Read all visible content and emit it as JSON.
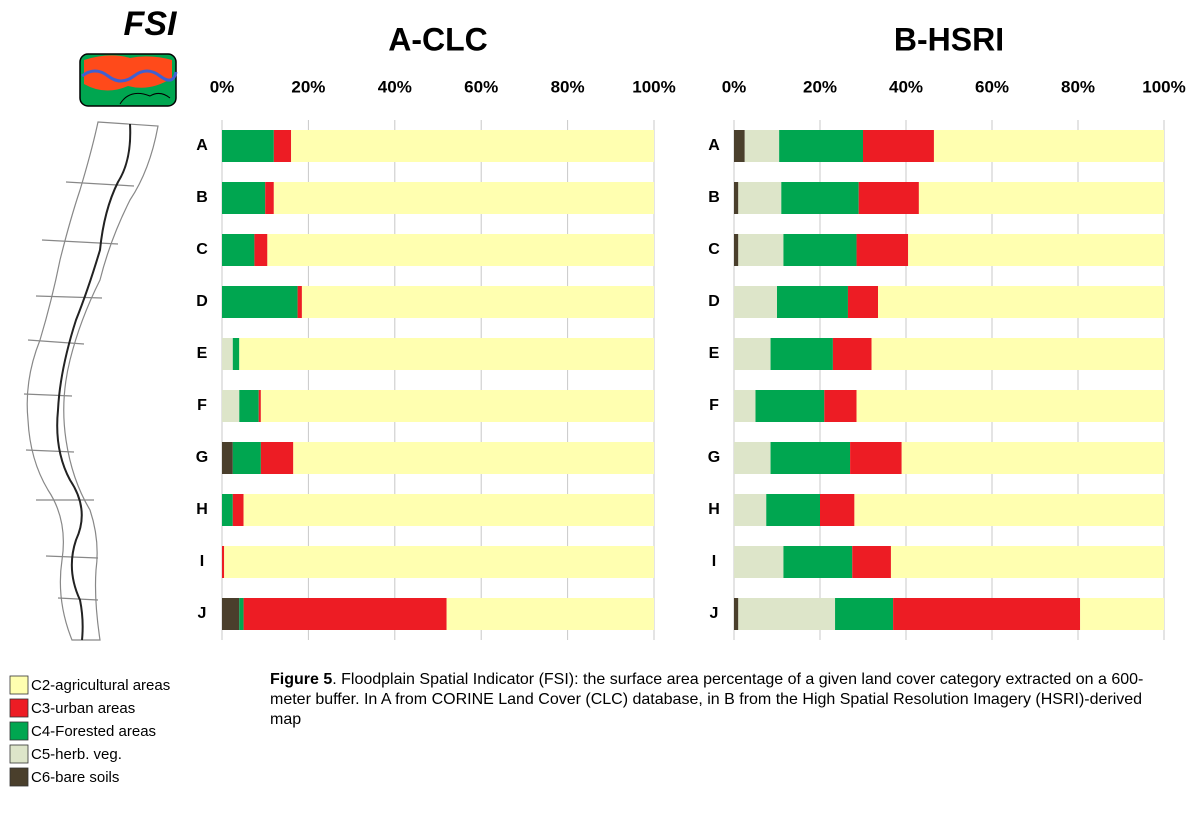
{
  "fsi_title": "FSI",
  "caption": {
    "label": "Figure 5",
    "text": ". Floodplain Spatial Indicator (FSI): the surface area percentage of a given land cover category extracted on a 600-meter buffer.  In A from CORINE Land Cover (CLC) database, in B from the High Spatial Resolution Imagery (HSRI)-derived map"
  },
  "chart_data": [
    {
      "type": "stacked-bar",
      "orientation": "horizontal",
      "title": "A-CLC",
      "categories": [
        "A",
        "B",
        "C",
        "D",
        "E",
        "F",
        "G",
        "H",
        "I",
        "J"
      ],
      "series": [
        {
          "name": "C6-bare soils",
          "color": "#4a3f2c",
          "values": [
            0,
            0,
            0,
            0,
            0,
            0,
            2.5,
            0,
            0,
            4
          ]
        },
        {
          "name": "C5-herb. veg.",
          "color": "#dde5c9",
          "values": [
            0,
            0,
            0,
            0,
            2.5,
            4,
            0,
            0,
            0,
            0
          ]
        },
        {
          "name": "C4-Forested areas",
          "color": "#00a650",
          "values": [
            12,
            10,
            7.5,
            17.5,
            1.5,
            4.5,
            6.5,
            2.5,
            0,
            1
          ]
        },
        {
          "name": "C3-urban areas",
          "color": "#ed1c24",
          "values": [
            4,
            2,
            3,
            1,
            0,
            0.5,
            7.5,
            2.5,
            0.5,
            47
          ]
        },
        {
          "name": "C2-agricultural areas",
          "color": "#ffffb0",
          "values": [
            84,
            88,
            89.5,
            81.5,
            96,
            91,
            83.5,
            95,
            99.5,
            48
          ]
        }
      ],
      "xlim": [
        0,
        100
      ],
      "xticks": [
        {
          "value": 0,
          "label": "0%"
        },
        {
          "value": 20,
          "label": "20%"
        },
        {
          "value": 40,
          "label": "40%"
        },
        {
          "value": 60,
          "label": "60%"
        },
        {
          "value": 80,
          "label": "80%"
        },
        {
          "value": 100,
          "label": "100%"
        }
      ],
      "grid": true
    },
    {
      "type": "stacked-bar",
      "orientation": "horizontal",
      "title": "B-HSRI",
      "categories": [
        "A",
        "B",
        "C",
        "D",
        "E",
        "F",
        "G",
        "H",
        "I",
        "J"
      ],
      "series": [
        {
          "values": [
            2.5,
            1,
            1,
            0,
            0,
            0,
            0,
            0,
            0,
            1
          ]
        },
        {
          "values": [
            8,
            10,
            10.5,
            10,
            8.5,
            5,
            8.5,
            7.5,
            11.5,
            22.5
          ]
        },
        {
          "values": [
            19.5,
            18,
            17,
            16.5,
            14.5,
            16,
            18.5,
            12.5,
            16,
            13.5
          ]
        },
        {
          "values": [
            16.5,
            14,
            12,
            7,
            9,
            7.5,
            12,
            8,
            9,
            43.5
          ]
        },
        {
          "values": [
            53.5,
            57,
            59.5,
            66.5,
            68,
            71.5,
            61,
            72,
            63.5,
            19.5
          ]
        }
      ],
      "xlim": [
        0,
        100
      ],
      "xticks": [
        {
          "value": 0,
          "label": "0%"
        },
        {
          "value": 20,
          "label": "20%"
        },
        {
          "value": 40,
          "label": "40%"
        },
        {
          "value": 60,
          "label": "60%"
        },
        {
          "value": 80,
          "label": "80%"
        },
        {
          "value": 100,
          "label": "100%"
        }
      ],
      "grid": true
    }
  ]
}
